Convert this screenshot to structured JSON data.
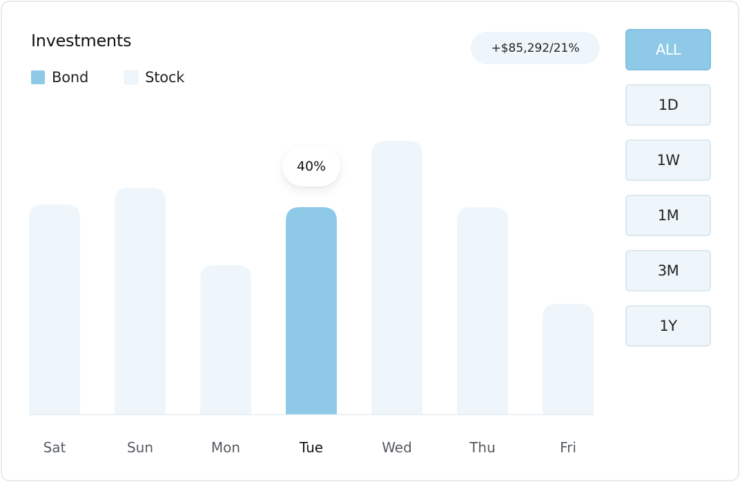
{
  "header": {
    "title": "Investments",
    "summary": "+$85,292/21%"
  },
  "legend": [
    {
      "label": "Bond",
      "color": "#8ecae8"
    },
    {
      "label": "Stock",
      "color": "#eef6fb"
    }
  ],
  "range": {
    "options": [
      "ALL",
      "1D",
      "1W",
      "1M",
      "3M",
      "1Y"
    ],
    "selected": "ALL"
  },
  "tooltip": {
    "text": "40%"
  },
  "colors": {
    "accent": "#8ecae8",
    "inactive_bar": "#eef6fb",
    "axis": "#e6eef3",
    "tick_text": "#555a60",
    "tick_text_active": "#111111"
  },
  "chart_data": {
    "type": "bar",
    "categories": [
      "Sat",
      "Sun",
      "Mon",
      "Tue",
      "Wed",
      "Thu",
      "Fri"
    ],
    "series": [
      {
        "name": "Stock",
        "values": [
          76,
          82,
          54,
          75,
          99,
          75,
          40
        ]
      }
    ],
    "highlighted_category": "Tue",
    "highlighted_series": "Bond",
    "highlight_label": "40%",
    "ylim": [
      0,
      100
    ],
    "grid": false,
    "legend_position": "top-left"
  }
}
